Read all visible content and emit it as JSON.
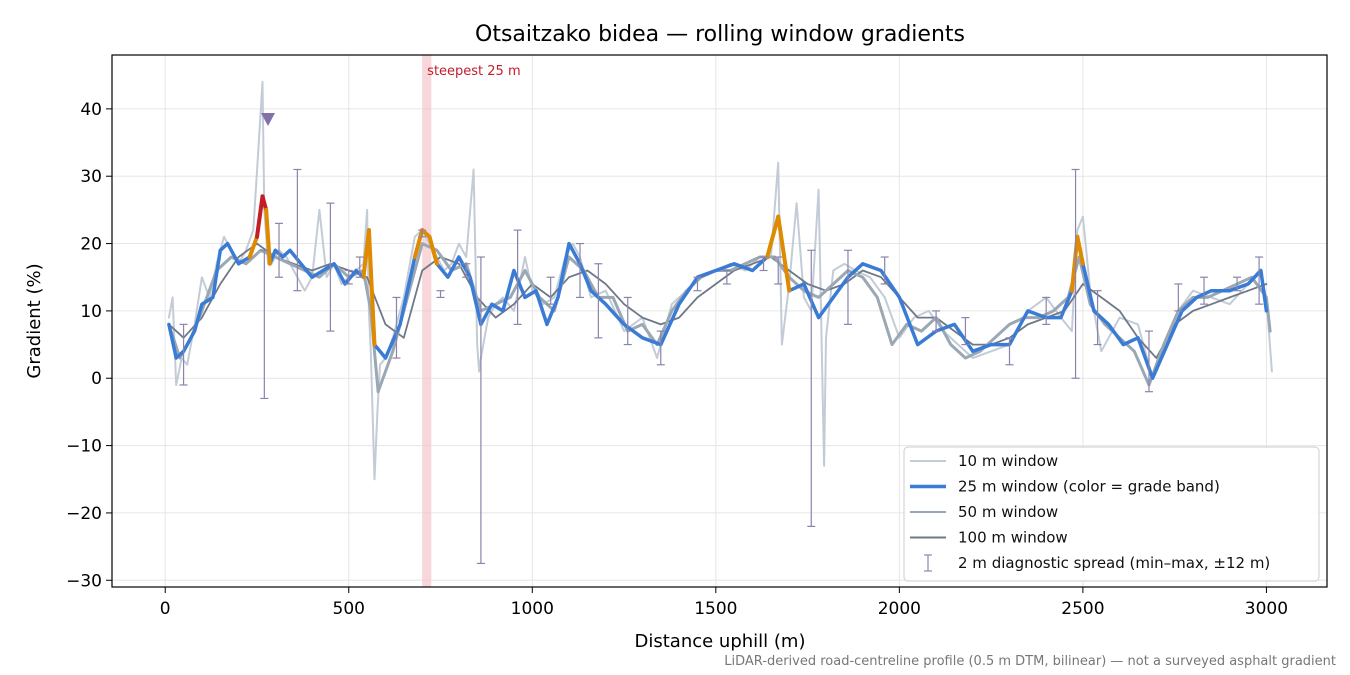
{
  "chart_data": {
    "type": "line",
    "title": "Otsaitzako bidea — rolling window gradients",
    "xlabel": "Distance uphill (m)",
    "ylabel": "Gradient (%)",
    "xlim": [
      -145,
      3165
    ],
    "ylim": [
      -31,
      48
    ],
    "xticks": [
      0,
      500,
      1000,
      1500,
      2000,
      2500,
      3000
    ],
    "yticks": [
      -30,
      -20,
      -10,
      0,
      10,
      20,
      30,
      40
    ],
    "xtick_labels": [
      "0",
      "500",
      "1000",
      "1500",
      "2000",
      "2500",
      "3000"
    ],
    "ytick_labels": [
      "−30",
      "−20",
      "−10",
      "0",
      "10",
      "20",
      "30",
      "40"
    ],
    "grid": true,
    "legend_position": "lower right",
    "annotation": {
      "text": "steepest 25 m",
      "x_start": 700,
      "x_end": 725
    },
    "marker": {
      "x": 280,
      "y": 38.5,
      "shape": "triangle-down"
    },
    "footer": "LiDAR-derived road-centreline profile (0.5 m DTM, bilinear) — not a surveyed asphalt gradient",
    "colors": {
      "w10": "#c3ccd6",
      "w25": "#3a7bd5",
      "w25_orange": "#e08a00",
      "w25_red": "#c41d2a",
      "w50": "#9aa7b4",
      "w100": "#6f7887",
      "diag": "#8a84ad",
      "band": "#f3c6c9",
      "annot": "#c41d2a",
      "marker": "#8470a8"
    },
    "series": [
      {
        "name": "10 m window",
        "key": "w10",
        "x": [
          10,
          20,
          30,
          45,
          60,
          80,
          100,
          120,
          140,
          160,
          180,
          200,
          220,
          240,
          255,
          265,
          270,
          280,
          290,
          310,
          330,
          350,
          380,
          400,
          420,
          440,
          460,
          480,
          500,
          520,
          540,
          550,
          555,
          560,
          570,
          578,
          585,
          600,
          620,
          650,
          680,
          700,
          720,
          740,
          760,
          780,
          800,
          820,
          840,
          850,
          855,
          860,
          880,
          900,
          920,
          950,
          980,
          1000,
          1030,
          1060,
          1090,
          1110,
          1130,
          1160,
          1200,
          1250,
          1300,
          1340,
          1380,
          1420,
          1460,
          1500,
          1540,
          1580,
          1620,
          1650,
          1670,
          1680,
          1700,
          1720,
          1740,
          1760,
          1780,
          1795,
          1800,
          1820,
          1850,
          1880,
          1920,
          1960,
          2000,
          2040,
          2080,
          2120,
          2160,
          2200,
          2250,
          2300,
          2350,
          2400,
          2440,
          2470,
          2485,
          2500,
          2520,
          2550,
          2600,
          2650,
          2690,
          2720,
          2760,
          2800,
          2850,
          2900,
          2950,
          2980,
          3000,
          3015
        ],
        "y": [
          9,
          12,
          -1,
          3,
          2,
          8,
          15,
          12,
          17,
          21,
          19,
          17,
          19,
          22,
          35,
          44,
          25,
          17,
          17,
          19,
          18,
          16,
          13,
          15,
          25,
          15,
          17,
          14,
          15,
          16,
          17,
          25,
          10,
          4,
          -15,
          -5,
          2,
          3,
          6,
          12,
          21,
          22,
          20,
          18,
          16,
          17,
          20,
          18,
          31,
          5,
          1,
          3,
          9,
          11,
          12,
          10,
          18,
          13,
          11,
          12,
          18,
          20,
          18,
          12,
          13,
          7,
          9,
          3,
          11,
          13,
          15,
          16,
          17,
          16,
          18,
          18,
          32,
          5,
          14,
          26,
          12,
          10,
          28,
          -13,
          6,
          16,
          17,
          16,
          15,
          12,
          6,
          9,
          10,
          7,
          5,
          3,
          4,
          5,
          10,
          12,
          9,
          7,
          22,
          24,
          13,
          4,
          9,
          8,
          0,
          5,
          10,
          13,
          12,
          11,
          14,
          16,
          12,
          1
        ]
      },
      {
        "name": "25 m window (color = grade band)",
        "key": "w25",
        "x": [
          10,
          30,
          50,
          80,
          100,
          130,
          150,
          170,
          200,
          230,
          250,
          265,
          275,
          285,
          300,
          320,
          340,
          370,
          400,
          430,
          460,
          490,
          520,
          540,
          555,
          570,
          600,
          640,
          680,
          700,
          720,
          740,
          770,
          800,
          830,
          860,
          890,
          920,
          950,
          980,
          1010,
          1040,
          1070,
          1100,
          1130,
          1160,
          1200,
          1250,
          1300,
          1350,
          1400,
          1450,
          1500,
          1550,
          1600,
          1640,
          1670,
          1700,
          1740,
          1780,
          1820,
          1860,
          1900,
          1950,
          2000,
          2050,
          2100,
          2150,
          2200,
          2250,
          2300,
          2350,
          2400,
          2440,
          2470,
          2485,
          2500,
          2530,
          2570,
          2610,
          2650,
          2690,
          2730,
          2770,
          2810,
          2850,
          2900,
          2950,
          2985,
          3000
        ],
        "y": [
          8,
          3,
          4,
          7,
          11,
          12,
          19,
          20,
          17,
          18,
          21,
          27,
          25,
          17,
          19,
          18,
          19,
          17,
          15,
          16,
          17,
          14,
          16,
          15,
          22,
          5,
          3,
          8,
          18,
          22,
          21,
          17,
          15,
          18,
          15,
          8,
          11,
          10,
          16,
          12,
          13,
          8,
          12,
          20,
          17,
          13,
          11,
          8,
          6,
          5,
          11,
          15,
          16,
          17,
          16,
          18,
          24,
          13,
          14,
          9,
          12,
          15,
          17,
          16,
          12,
          5,
          7,
          8,
          4,
          5,
          5,
          10,
          9,
          9,
          13,
          21,
          17,
          10,
          8,
          5,
          6,
          0,
          5,
          10,
          12,
          13,
          13,
          14,
          16,
          10
        ]
      },
      {
        "name": "50 m window",
        "key": "w50",
        "x": [
          10,
          40,
          70,
          100,
          140,
          180,
          220,
          260,
          300,
          340,
          380,
          420,
          460,
          500,
          540,
          560,
          580,
          620,
          660,
          700,
          740,
          780,
          820,
          860,
          900,
          940,
          980,
          1020,
          1060,
          1100,
          1140,
          1180,
          1220,
          1260,
          1300,
          1340,
          1380,
          1420,
          1460,
          1500,
          1540,
          1580,
          1620,
          1660,
          1700,
          1740,
          1780,
          1820,
          1860,
          1900,
          1940,
          1980,
          2020,
          2060,
          2100,
          2140,
          2180,
          2220,
          2260,
          2300,
          2340,
          2380,
          2420,
          2460,
          2490,
          2520,
          2560,
          2600,
          2640,
          2680,
          2720,
          2760,
          2800,
          2840,
          2880,
          2920,
          2960,
          3000,
          3010
        ],
        "y": [
          8,
          3,
          6,
          10,
          16,
          18,
          17,
          19,
          18,
          17,
          16,
          15,
          17,
          15,
          16,
          10,
          -2,
          4,
          12,
          20,
          19,
          16,
          17,
          10,
          11,
          12,
          16,
          12,
          10,
          18,
          16,
          12,
          12,
          7,
          8,
          5,
          10,
          13,
          15,
          16,
          16,
          17,
          18,
          18,
          15,
          13,
          12,
          14,
          16,
          15,
          12,
          5,
          8,
          7,
          9,
          5,
          3,
          4,
          6,
          8,
          9,
          9,
          10,
          12,
          18,
          11,
          8,
          6,
          4,
          -1,
          5,
          10,
          12,
          12,
          13,
          14,
          15,
          12,
          7
        ]
      },
      {
        "name": "100 m window",
        "key": "w100",
        "x": [
          10,
          50,
          100,
          150,
          200,
          250,
          300,
          350,
          400,
          450,
          500,
          550,
          600,
          650,
          700,
          750,
          800,
          850,
          900,
          950,
          1000,
          1050,
          1100,
          1150,
          1200,
          1250,
          1300,
          1350,
          1400,
          1450,
          1500,
          1550,
          1600,
          1650,
          1700,
          1750,
          1800,
          1850,
          1900,
          1950,
          2000,
          2050,
          2100,
          2150,
          2200,
          2250,
          2300,
          2350,
          2400,
          2450,
          2500,
          2550,
          2600,
          2650,
          2700,
          2750,
          2800,
          2850,
          2900,
          2950,
          3000
        ],
        "y": [
          8,
          6,
          9,
          14,
          18,
          20,
          18,
          17,
          16,
          17,
          16,
          15,
          8,
          6,
          16,
          18,
          17,
          12,
          9,
          11,
          14,
          12,
          15,
          16,
          14,
          11,
          9,
          8,
          9,
          12,
          14,
          16,
          17,
          18,
          16,
          14,
          13,
          14,
          16,
          15,
          12,
          9,
          9,
          7,
          5,
          5,
          6,
          8,
          9,
          10,
          14,
          12,
          10,
          6,
          3,
          8,
          10,
          11,
          12,
          13,
          14
        ]
      }
    ],
    "diagnostic": {
      "name": "2 m diagnostic spread (min–max, ±12 m)",
      "x": [
        50,
        270,
        310,
        360,
        450,
        500,
        530,
        630,
        700,
        750,
        820,
        860,
        960,
        1050,
        1130,
        1180,
        1260,
        1350,
        1450,
        1530,
        1630,
        1670,
        1760,
        1860,
        1960,
        2100,
        2180,
        2300,
        2400,
        2480,
        2540,
        2680,
        2760,
        2830,
        2920,
        2980
      ],
      "min": [
        -1,
        -3,
        15,
        13,
        7,
        14,
        15,
        3,
        21,
        12,
        15,
        -27.5,
        8,
        11,
        12,
        6,
        5,
        2,
        13,
        14,
        16,
        14,
        -22,
        8,
        14,
        7,
        5,
        2,
        8,
        0,
        5,
        -2,
        10,
        11,
        13,
        11
      ],
      "max": [
        8,
        19,
        23,
        31,
        26,
        16,
        18,
        12,
        22,
        13,
        17,
        18,
        22,
        15,
        20,
        17,
        12,
        7,
        15,
        16,
        18,
        18,
        19,
        19,
        18,
        10,
        9,
        6,
        12,
        31,
        13,
        7,
        14,
        15,
        15,
        18
      ]
    },
    "legend_entries": [
      {
        "label": "10 m window",
        "key": "w10"
      },
      {
        "label": "25 m window (color = grade band)",
        "key": "w25"
      },
      {
        "label": "50 m window",
        "key": "w50"
      },
      {
        "label": "100 m window",
        "key": "w100"
      },
      {
        "label": "2 m diagnostic spread (min–max, ±12 m)",
        "key": "diag"
      }
    ]
  }
}
